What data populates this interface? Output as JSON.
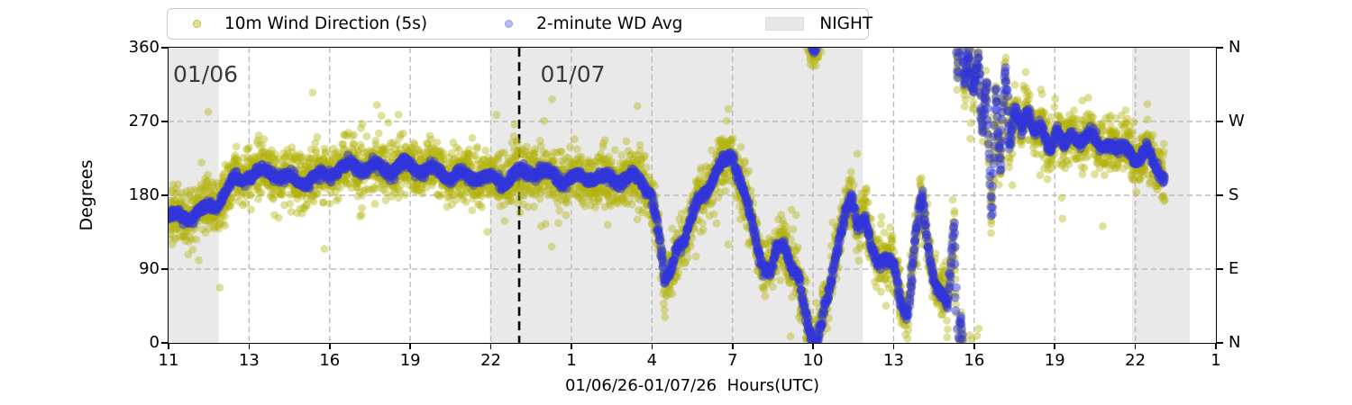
{
  "legend": {
    "items": [
      {
        "label": "10m Wind Direction (5s)",
        "marker": "dot",
        "fill": "#e3e39a",
        "edge": "#bcbc3a"
      },
      {
        "label": "2-minute WD Avg",
        "marker": "dot",
        "fill": "#b7bbf2",
        "edge": "#979ee6"
      },
      {
        "label": "NIGHT",
        "marker": "patch",
        "fill": "#e7e7e7",
        "edge": "#dcdcdc"
      }
    ]
  },
  "annotations": {
    "day1": "01/06",
    "day2": "01/07",
    "label_color": "#3a3a3a"
  },
  "chart_data": {
    "type": "scatter",
    "xlabel": "01/06/26-01/07/26  Hours(UTC)",
    "ylabel": "Degrees",
    "ylim": [
      0,
      360
    ],
    "grid": true,
    "legend_position": "top",
    "x_tick_labels": [
      "11",
      "13",
      "16",
      "19",
      "22",
      "1",
      "4",
      "7",
      "10",
      "13",
      "16",
      "19",
      "22",
      "1"
    ],
    "y_tick_values": [
      0,
      90,
      180,
      270,
      360
    ],
    "y_tick_labels_left": [
      "0",
      "90",
      "180",
      "270",
      "360"
    ],
    "y_tick_labels_right": [
      "N",
      "E",
      "S",
      "W",
      "N"
    ],
    "colors": {
      "wind_scatter": "rgba(178,178,10,0.40)",
      "wind_avg": "rgba(48,52,218,0.48)",
      "night_shade": "#e9e9e9",
      "gridline": "#bbbbbb",
      "midnight_line": "#000000"
    },
    "night_regions": [
      {
        "start": 0.0,
        "end": 0.048
      },
      {
        "start": 0.307,
        "end": 0.663
      },
      {
        "start": 0.92,
        "end": 0.975
      }
    ],
    "midnight_line_frac": 0.3348,
    "day2_label_frac": 0.355,
    "data_end_frac": 0.951,
    "series": [
      {
        "name": "10m Wind Direction (5s)",
        "noise_sigma_deg": 16,
        "outlier_rate": 0.012,
        "marker_radius": 4.4,
        "n_points": 5200
      },
      {
        "name": "2-minute WD Avg",
        "noise_sigma_deg": 3.2,
        "outlier_rate": 0.0,
        "marker_radius": 5.0,
        "n_points": 3000
      }
    ],
    "avg_track_frac_deg": [
      [
        0.0,
        150
      ],
      [
        0.012,
        152
      ],
      [
        0.03,
        162
      ],
      [
        0.048,
        175
      ],
      [
        0.062,
        196
      ],
      [
        0.078,
        202
      ],
      [
        0.1,
        207
      ],
      [
        0.125,
        200
      ],
      [
        0.15,
        206
      ],
      [
        0.175,
        212
      ],
      [
        0.2,
        214
      ],
      [
        0.226,
        220
      ],
      [
        0.244,
        210
      ],
      [
        0.27,
        201
      ],
      [
        0.295,
        206
      ],
      [
        0.32,
        200
      ],
      [
        0.348,
        206
      ],
      [
        0.373,
        201
      ],
      [
        0.4,
        206
      ],
      [
        0.425,
        196
      ],
      [
        0.45,
        197
      ],
      [
        0.461,
        186
      ],
      [
        0.467,
        140
      ],
      [
        0.474,
        72
      ],
      [
        0.48,
        96
      ],
      [
        0.486,
        128
      ],
      [
        0.493,
        124
      ],
      [
        0.506,
        176
      ],
      [
        0.52,
        196
      ],
      [
        0.532,
        220
      ],
      [
        0.538,
        231
      ],
      [
        0.545,
        200
      ],
      [
        0.553,
        166
      ],
      [
        0.562,
        122
      ],
      [
        0.569,
        96
      ],
      [
        0.575,
        90
      ],
      [
        0.581,
        114
      ],
      [
        0.588,
        120
      ],
      [
        0.595,
        96
      ],
      [
        0.601,
        80
      ],
      [
        0.607,
        32
      ],
      [
        0.612,
        6
      ],
      [
        0.616,
        354
      ],
      [
        0.62,
        10
      ],
      [
        0.626,
        42
      ],
      [
        0.633,
        72
      ],
      [
        0.639,
        112
      ],
      [
        0.646,
        166
      ],
      [
        0.652,
        186
      ],
      [
        0.658,
        142
      ],
      [
        0.665,
        150
      ],
      [
        0.672,
        120
      ],
      [
        0.678,
        102
      ],
      [
        0.687,
        96
      ],
      [
        0.693,
        86
      ],
      [
        0.7,
        46
      ],
      [
        0.706,
        36
      ],
      [
        0.713,
        120
      ],
      [
        0.719,
        176
      ],
      [
        0.725,
        120
      ],
      [
        0.731,
        82
      ],
      [
        0.738,
        62
      ],
      [
        0.744,
        46
      ],
      [
        0.75,
        150
      ],
      [
        0.753,
        330
      ],
      [
        0.756,
        42
      ],
      [
        0.76,
        322
      ],
      [
        0.764,
        356
      ],
      [
        0.768,
        302
      ],
      [
        0.773,
        344
      ],
      [
        0.777,
        252
      ],
      [
        0.781,
        320
      ],
      [
        0.786,
        152
      ],
      [
        0.79,
        310
      ],
      [
        0.794,
        202
      ],
      [
        0.799,
        330
      ],
      [
        0.803,
        232
      ],
      [
        0.808,
        290
      ],
      [
        0.814,
        266
      ],
      [
        0.82,
        286
      ],
      [
        0.827,
        252
      ],
      [
        0.833,
        270
      ],
      [
        0.842,
        242
      ],
      [
        0.848,
        262
      ],
      [
        0.855,
        236
      ],
      [
        0.863,
        256
      ],
      [
        0.872,
        242
      ],
      [
        0.88,
        250
      ],
      [
        0.889,
        236
      ],
      [
        0.898,
        246
      ],
      [
        0.906,
        232
      ],
      [
        0.915,
        242
      ],
      [
        0.925,
        226
      ],
      [
        0.934,
        236
      ],
      [
        0.942,
        216
      ],
      [
        0.951,
        205
      ]
    ]
  }
}
